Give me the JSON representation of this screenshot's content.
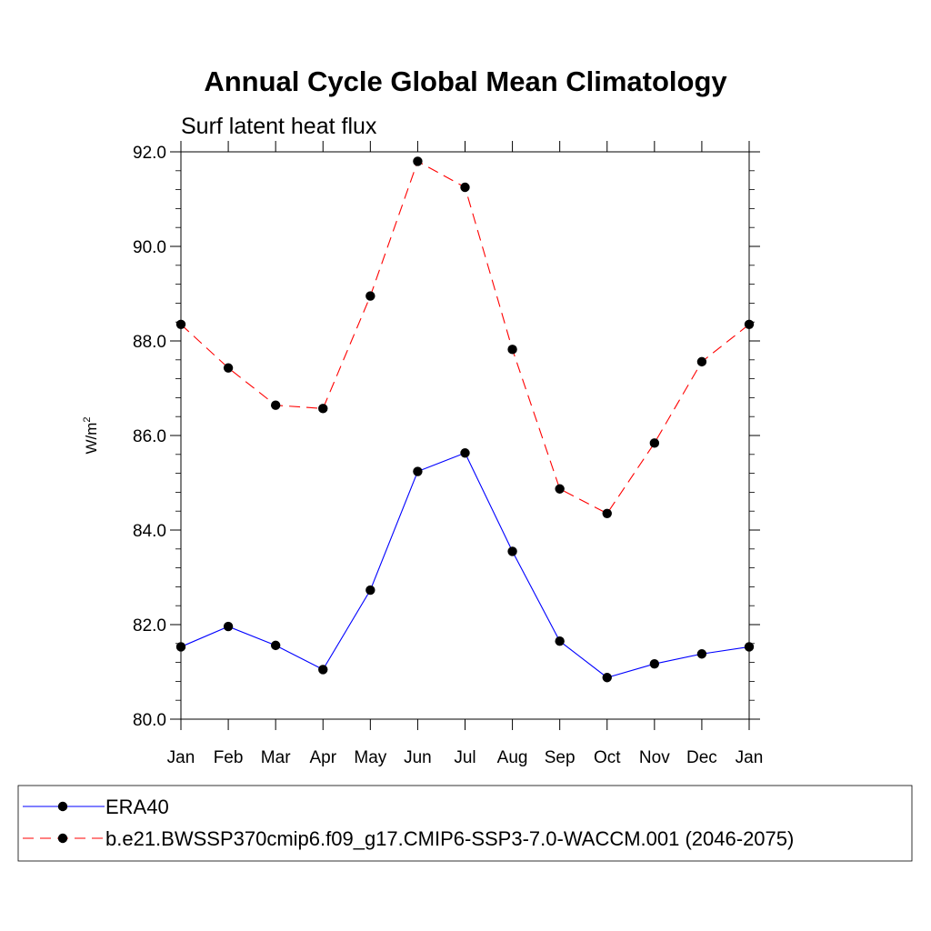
{
  "chart_data": {
    "type": "line",
    "title": "Annual Cycle Global Mean Climatology",
    "subtitle": "Surf latent heat flux",
    "ylabel": "W/m",
    "ylabel_sup": "2",
    "xlabel": "",
    "categories": [
      "Jan",
      "Feb",
      "Mar",
      "Apr",
      "May",
      "Jun",
      "Jul",
      "Aug",
      "Sep",
      "Oct",
      "Nov",
      "Dec",
      "Jan"
    ],
    "ylim": [
      80.0,
      92.0
    ],
    "yticks": [
      "80.0",
      "82.0",
      "84.0",
      "86.0",
      "88.0",
      "90.0",
      "92.0"
    ],
    "ytick_values": [
      80,
      82,
      84,
      86,
      88,
      90,
      92
    ],
    "series": [
      {
        "name": "ERA40",
        "color": "#0000ff",
        "dash": "solid",
        "marker": "circle",
        "values": [
          81.53,
          81.96,
          81.56,
          81.05,
          82.73,
          85.24,
          85.63,
          83.55,
          81.65,
          80.88,
          81.17,
          81.38,
          81.53
        ]
      },
      {
        "name": "b.e21.BWSSP370cmip6.f09_g17.CMIP6-SSP3-7.0-WACCM.001 (2046-2075)",
        "color": "#ff0000",
        "dash": "dashed",
        "marker": "circle",
        "values": [
          88.35,
          87.43,
          86.64,
          86.57,
          88.95,
          91.8,
          91.25,
          87.82,
          84.87,
          84.35,
          85.84,
          87.56,
          88.35
        ]
      }
    ],
    "legend_position": "bottom"
  }
}
